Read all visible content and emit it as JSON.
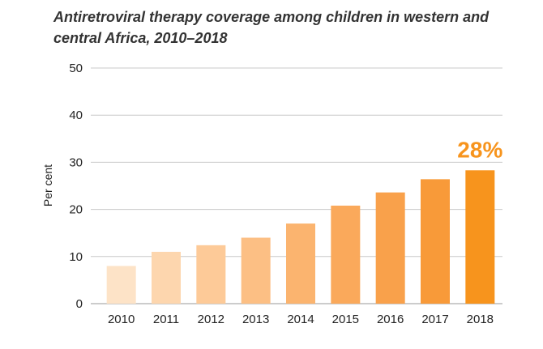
{
  "chart_data": {
    "type": "bar",
    "title": "Antiretroviral therapy coverage among children in western and central Africa, 2010–2018",
    "xlabel": "",
    "ylabel": "Per cent",
    "ylim": [
      0,
      50
    ],
    "yticks": [
      "0",
      "10",
      "20",
      "30",
      "40",
      "50"
    ],
    "grid": true,
    "categories": [
      "2010",
      "2011",
      "2012",
      "2013",
      "2014",
      "2015",
      "2016",
      "2017",
      "2018"
    ],
    "values": [
      8,
      11,
      12.4,
      14,
      17,
      20.8,
      23.6,
      26.4,
      28.3
    ],
    "colors": [
      "#fde3c7",
      "#fdd6ae",
      "#fdca98",
      "#fcbf84",
      "#fbb46f",
      "#faa95b",
      "#f9a14b",
      "#f89a39",
      "#f7941d"
    ],
    "grid_color": "#c8c8c8",
    "annotation": {
      "text": "28%",
      "category": "2018",
      "color": "#f7941d"
    }
  }
}
